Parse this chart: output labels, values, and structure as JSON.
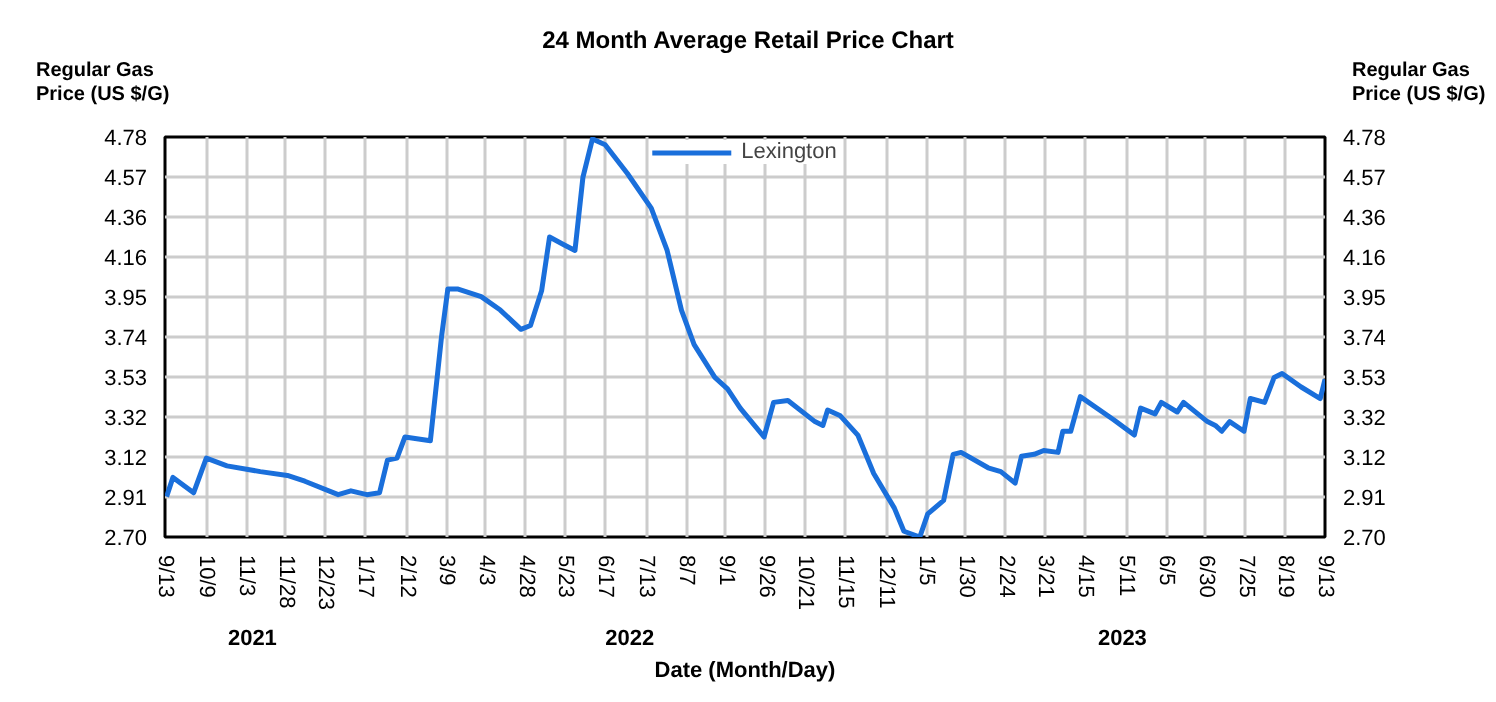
{
  "chart_data": {
    "type": "line",
    "title": "24 Month Average Retail Price Chart",
    "xlabel": "Date (Month/Day)",
    "ylabel": "Regular Gas\nPrice (US $/G)",
    "y2label": "Regular Gas\nPrice (US $/G)",
    "x": [
      "2021-09-14",
      "2021-09-18",
      "2021-10-01",
      "2021-10-09",
      "2021-10-22",
      "2021-11-12",
      "2021-11-29",
      "2021-12-10",
      "2021-12-31",
      "2022-01-08",
      "2022-01-18",
      "2022-01-26",
      "2022-01-31",
      "2022-02-06",
      "2022-02-11",
      "2022-02-27",
      "2022-03-06",
      "2022-03-10",
      "2022-03-16",
      "2022-03-31",
      "2022-04-12",
      "2022-04-25",
      "2022-05-01",
      "2022-05-08",
      "2022-05-13",
      "2022-05-22",
      "2022-05-29",
      "2022-06-03",
      "2022-06-09",
      "2022-06-17",
      "2022-07-01",
      "2022-07-16",
      "2022-07-26",
      "2022-08-04",
      "2022-08-12",
      "2022-08-25",
      "2022-09-02",
      "2022-09-10",
      "2022-09-25",
      "2022-10-01",
      "2022-10-10",
      "2022-10-27",
      "2022-11-01",
      "2022-11-04",
      "2022-11-12",
      "2022-11-23",
      "2022-12-03",
      "2022-12-16",
      "2022-12-22",
      "2023-01-01",
      "2023-01-06",
      "2023-01-16",
      "2023-01-22",
      "2023-01-27",
      "2023-02-13",
      "2023-02-21",
      "2023-03-02",
      "2023-03-06",
      "2023-03-14",
      "2023-03-20",
      "2023-03-29",
      "2023-04-01",
      "2023-04-06",
      "2023-04-12",
      "2023-05-03",
      "2023-05-16",
      "2023-05-20",
      "2023-05-29",
      "2023-06-02",
      "2023-06-12",
      "2023-06-16",
      "2023-07-01",
      "2023-07-06",
      "2023-07-10",
      "2023-07-15",
      "2023-07-24",
      "2023-07-28",
      "2023-08-06",
      "2023-08-12",
      "2023-08-17",
      "2023-08-29",
      "2023-09-10",
      "2023-09-13"
    ],
    "series": [
      {
        "name": "Lexington",
        "color": "#1a6fdb",
        "values": [
          2.91,
          3.01,
          2.93,
          3.11,
          3.07,
          3.04,
          3.02,
          2.99,
          2.92,
          2.94,
          2.92,
          2.93,
          3.1,
          3.11,
          3.22,
          3.2,
          3.74,
          3.99,
          3.99,
          3.95,
          3.88,
          3.78,
          3.8,
          3.98,
          4.26,
          4.22,
          4.19,
          4.57,
          4.77,
          4.74,
          4.59,
          4.41,
          4.19,
          3.88,
          3.7,
          3.53,
          3.47,
          3.37,
          3.22,
          3.4,
          3.41,
          3.3,
          3.28,
          3.36,
          3.33,
          3.23,
          3.03,
          2.85,
          2.73,
          2.7,
          2.82,
          2.89,
          3.13,
          3.14,
          3.06,
          3.04,
          2.98,
          3.12,
          3.13,
          3.15,
          3.14,
          3.25,
          3.25,
          3.43,
          3.31,
          3.23,
          3.37,
          3.34,
          3.4,
          3.35,
          3.4,
          3.3,
          3.28,
          3.25,
          3.3,
          3.25,
          3.42,
          3.4,
          3.53,
          3.55,
          3.48,
          3.42,
          3.52
        ]
      }
    ],
    "xlim": [
      "2021-09-13",
      "2023-09-13"
    ],
    "xticks": [
      {
        "value": "2021-09-13",
        "label": "9/13"
      },
      {
        "value": "2021-10-09",
        "label": "10/9"
      },
      {
        "value": "2021-11-03",
        "label": "11/3"
      },
      {
        "value": "2021-11-28",
        "label": "11/28"
      },
      {
        "value": "2021-12-23",
        "label": "12/23"
      },
      {
        "value": "2022-01-17",
        "label": "1/17"
      },
      {
        "value": "2022-02-12",
        "label": "2/12"
      },
      {
        "value": "2022-03-09",
        "label": "3/9"
      },
      {
        "value": "2022-04-03",
        "label": "4/3"
      },
      {
        "value": "2022-04-28",
        "label": "4/28"
      },
      {
        "value": "2022-05-23",
        "label": "5/23"
      },
      {
        "value": "2022-06-17",
        "label": "6/17"
      },
      {
        "value": "2022-07-13",
        "label": "7/13"
      },
      {
        "value": "2022-08-07",
        "label": "8/7"
      },
      {
        "value": "2022-09-01",
        "label": "9/1"
      },
      {
        "value": "2022-09-26",
        "label": "9/26"
      },
      {
        "value": "2022-10-21",
        "label": "10/21"
      },
      {
        "value": "2022-11-15",
        "label": "11/15"
      },
      {
        "value": "2022-12-11",
        "label": "12/11"
      },
      {
        "value": "2023-01-05",
        "label": "1/5"
      },
      {
        "value": "2023-01-30",
        "label": "1/30"
      },
      {
        "value": "2023-02-24",
        "label": "2/24"
      },
      {
        "value": "2023-03-21",
        "label": "3/21"
      },
      {
        "value": "2023-04-15",
        "label": "4/15"
      },
      {
        "value": "2023-05-11",
        "label": "5/11"
      },
      {
        "value": "2023-06-05",
        "label": "6/5"
      },
      {
        "value": "2023-06-30",
        "label": "6/30"
      },
      {
        "value": "2023-07-25",
        "label": "7/25"
      },
      {
        "value": "2023-08-19",
        "label": "8/19"
      },
      {
        "value": "2023-09-13",
        "label": "9/13"
      }
    ],
    "ylim": [
      2.7,
      4.78
    ],
    "yticks": [
      {
        "value": 2.7,
        "label": "2.70"
      },
      {
        "value": 2.908,
        "label": "2.91"
      },
      {
        "value": 3.116,
        "label": "3.12"
      },
      {
        "value": 3.324,
        "label": "3.32"
      },
      {
        "value": 3.532,
        "label": "3.53"
      },
      {
        "value": 3.74,
        "label": "3.74"
      },
      {
        "value": 3.948,
        "label": "3.95"
      },
      {
        "value": 4.156,
        "label": "4.16"
      },
      {
        "value": 4.364,
        "label": "4.36"
      },
      {
        "value": 4.572,
        "label": "4.57"
      },
      {
        "value": 4.78,
        "label": "4.78"
      }
    ],
    "y2lim": [
      2.7,
      4.78
    ],
    "y2ticks": [
      {
        "value": 2.7,
        "label": "2.70"
      },
      {
        "value": 2.908,
        "label": "2.91"
      },
      {
        "value": 3.116,
        "label": "3.12"
      },
      {
        "value": 3.324,
        "label": "3.32"
      },
      {
        "value": 3.532,
        "label": "3.53"
      },
      {
        "value": 3.74,
        "label": "3.74"
      },
      {
        "value": 3.948,
        "label": "3.95"
      },
      {
        "value": 4.156,
        "label": "4.16"
      },
      {
        "value": 4.364,
        "label": "4.36"
      },
      {
        "value": 4.572,
        "label": "4.57"
      },
      {
        "value": 4.78,
        "label": "4.78"
      }
    ],
    "annotations": [
      "2021",
      "2022",
      "2023"
    ],
    "grid": true,
    "legend": "top",
    "line_style": "solid",
    "marker": "none"
  }
}
